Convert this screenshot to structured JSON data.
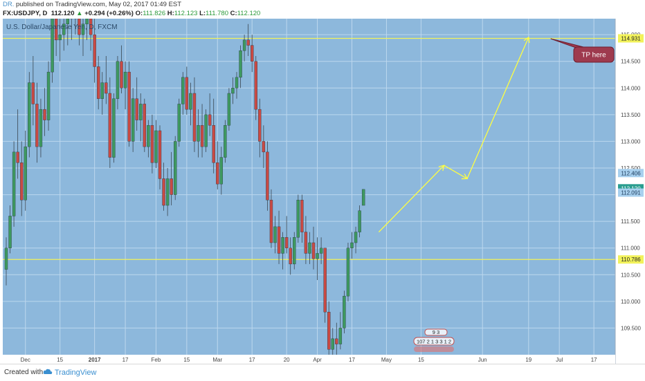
{
  "header": {
    "author": "DR.",
    "published": "published on TradingView.com, May 02, 2017 01:49 EST",
    "symbol": "FX:USDJPY, D",
    "last": "112.120",
    "change": "+0.294 (+0.26%)",
    "open_label": "O:",
    "open": "111.826",
    "high_label": "H:",
    "high": "112.123",
    "low_label": "L:",
    "low": "111.780",
    "close_label": "C:",
    "close": "112.120",
    "up_arrow": "▲"
  },
  "footer": {
    "created_with": "Created with",
    "brand": "TradingView"
  },
  "chart_data": {
    "type": "candlestick",
    "title": "U.S. Dollar/Japanese Yen, D, FXCM",
    "ylim": [
      109.0,
      115.3
    ],
    "y_ticks": [
      "109.500",
      "110.000",
      "110.500",
      "111.000",
      "111.500",
      "112.000",
      "112.500",
      "113.000",
      "113.500",
      "114.000",
      "114.500",
      "115.000"
    ],
    "x_ticks": [
      {
        "label": "Dec",
        "bar": 5
      },
      {
        "label": "15",
        "bar": 14
      },
      {
        "label": "2017",
        "bar": 23
      },
      {
        "label": "17",
        "bar": 31
      },
      {
        "label": "Feb",
        "bar": 39
      },
      {
        "label": "15",
        "bar": 47
      },
      {
        "label": "Mar",
        "bar": 55
      },
      {
        "label": "17",
        "bar": 64
      },
      {
        "label": "20",
        "bar": 73
      },
      {
        "label": "Apr",
        "bar": 81
      },
      {
        "label": "17",
        "bar": 90
      },
      {
        "label": "May",
        "bar": 99
      },
      {
        "label": "15",
        "bar": 108
      },
      {
        "label": "Jun",
        "bar": 124
      },
      {
        "label": "19",
        "bar": 136
      },
      {
        "label": "Jul",
        "bar": 144
      },
      {
        "label": "17",
        "bar": 153
      }
    ],
    "candles": [
      [
        110.6,
        111.2,
        110.3,
        111.0
      ],
      [
        111.0,
        111.8,
        110.9,
        111.6
      ],
      [
        111.6,
        113.0,
        111.4,
        112.8
      ],
      [
        112.8,
        113.6,
        112.3,
        112.6
      ],
      [
        112.6,
        113.0,
        111.6,
        111.9
      ],
      [
        111.9,
        113.2,
        111.7,
        112.9
      ],
      [
        112.9,
        114.3,
        112.7,
        114.1
      ],
      [
        114.1,
        114.6,
        113.3,
        113.7
      ],
      [
        113.7,
        114.1,
        112.6,
        112.9
      ],
      [
        112.9,
        113.8,
        112.7,
        113.6
      ],
      [
        113.6,
        114.0,
        113.1,
        113.4
      ],
      [
        113.4,
        114.5,
        113.2,
        114.3
      ],
      [
        114.3,
        115.5,
        114.1,
        115.3
      ],
      [
        115.3,
        115.6,
        114.6,
        114.9
      ],
      [
        114.9,
        115.3,
        114.5,
        115.0
      ],
      [
        115.0,
        115.4,
        114.7,
        115.2
      ],
      [
        115.2,
        115.5,
        114.8,
        115.3
      ],
      [
        115.3,
        115.6,
        114.9,
        115.4
      ],
      [
        115.4,
        115.6,
        115.0,
        115.3
      ],
      [
        115.3,
        115.5,
        114.8,
        115.0
      ],
      [
        115.0,
        115.4,
        114.6,
        115.2
      ],
      [
        115.2,
        115.5,
        114.9,
        115.3
      ],
      [
        115.3,
        115.4,
        114.7,
        115.0
      ],
      [
        115.0,
        115.3,
        114.1,
        114.4
      ],
      [
        114.4,
        114.6,
        113.6,
        113.8
      ],
      [
        113.8,
        114.3,
        113.5,
        114.1
      ],
      [
        114.1,
        114.6,
        113.7,
        113.9
      ],
      [
        113.9,
        114.2,
        112.5,
        112.7
      ],
      [
        112.7,
        113.9,
        112.6,
        113.8
      ],
      [
        113.8,
        114.6,
        113.6,
        114.5
      ],
      [
        114.5,
        114.8,
        113.9,
        114.0
      ],
      [
        114.0,
        114.5,
        113.6,
        114.3
      ],
      [
        114.3,
        114.5,
        112.9,
        113.0
      ],
      [
        113.0,
        114.0,
        112.8,
        113.8
      ],
      [
        113.8,
        114.2,
        113.2,
        113.4
      ],
      [
        113.4,
        113.9,
        113.0,
        113.7
      ],
      [
        113.7,
        113.8,
        112.8,
        112.9
      ],
      [
        112.9,
        113.4,
        112.7,
        113.3
      ],
      [
        113.3,
        113.5,
        112.4,
        112.6
      ],
      [
        112.6,
        113.4,
        112.5,
        113.2
      ],
      [
        113.2,
        113.3,
        112.1,
        112.3
      ],
      [
        112.3,
        112.6,
        111.7,
        111.8
      ],
      [
        111.8,
        112.5,
        111.6,
        112.3
      ],
      [
        112.3,
        112.8,
        111.8,
        112.0
      ],
      [
        112.0,
        113.1,
        111.9,
        113.0
      ],
      [
        113.0,
        113.8,
        112.9,
        113.7
      ],
      [
        113.7,
        114.3,
        113.5,
        114.2
      ],
      [
        114.2,
        114.4,
        113.5,
        113.6
      ],
      [
        113.6,
        114.1,
        113.3,
        113.9
      ],
      [
        113.9,
        114.2,
        112.8,
        113.0
      ],
      [
        113.0,
        113.6,
        112.7,
        113.3
      ],
      [
        113.3,
        113.7,
        112.7,
        112.9
      ],
      [
        112.9,
        113.6,
        112.8,
        113.5
      ],
      [
        113.5,
        113.9,
        113.1,
        113.3
      ],
      [
        113.3,
        113.8,
        112.4,
        112.6
      ],
      [
        112.6,
        113.0,
        112.1,
        112.2
      ],
      [
        112.2,
        112.9,
        112.0,
        112.7
      ],
      [
        112.7,
        113.4,
        112.6,
        113.3
      ],
      [
        113.3,
        114.0,
        113.2,
        113.9
      ],
      [
        113.9,
        114.2,
        113.7,
        114.0
      ],
      [
        114.0,
        114.3,
        113.8,
        114.2
      ],
      [
        114.2,
        114.8,
        114.0,
        114.7
      ],
      [
        114.7,
        115.0,
        114.5,
        114.9
      ],
      [
        114.9,
        115.2,
        114.6,
        114.8
      ],
      [
        114.8,
        115.0,
        114.3,
        114.5
      ],
      [
        114.5,
        114.6,
        113.4,
        113.6
      ],
      [
        113.6,
        113.8,
        112.7,
        113.0
      ],
      [
        113.0,
        113.3,
        112.5,
        112.8
      ],
      [
        112.8,
        113.0,
        111.7,
        111.9
      ],
      [
        111.9,
        112.1,
        111.0,
        111.1
      ],
      [
        111.1,
        111.6,
        110.9,
        111.4
      ],
      [
        111.4,
        111.7,
        110.7,
        110.9
      ],
      [
        110.9,
        111.3,
        110.6,
        111.2
      ],
      [
        111.2,
        111.6,
        110.9,
        111.0
      ],
      [
        111.0,
        111.2,
        110.5,
        110.7
      ],
      [
        110.7,
        111.3,
        110.6,
        111.2
      ],
      [
        111.2,
        112.0,
        111.1,
        111.9
      ],
      [
        111.9,
        112.0,
        111.1,
        111.3
      ],
      [
        111.3,
        111.6,
        110.7,
        110.9
      ],
      [
        110.9,
        111.3,
        110.7,
        111.1
      ],
      [
        111.1,
        111.4,
        110.6,
        110.8
      ],
      [
        110.8,
        111.2,
        110.4,
        110.9
      ],
      [
        110.9,
        111.2,
        110.7,
        111.0
      ],
      [
        111.0,
        111.0,
        109.6,
        109.8
      ],
      [
        109.8,
        110.0,
        108.9,
        109.1
      ],
      [
        109.1,
        109.5,
        108.8,
        109.3
      ],
      [
        109.3,
        109.6,
        109.0,
        109.2
      ],
      [
        109.2,
        109.8,
        109.1,
        109.5
      ],
      [
        109.5,
        110.2,
        109.4,
        110.1
      ],
      [
        110.1,
        111.1,
        110.0,
        111.0
      ],
      [
        111.0,
        111.3,
        110.8,
        111.1
      ],
      [
        111.1,
        111.4,
        110.9,
        111.3
      ],
      [
        111.3,
        111.8,
        111.2,
        111.7
      ],
      [
        111.8,
        112.1,
        111.8,
        112.1
      ]
    ],
    "projection": [
      {
        "bar": 97,
        "price": 111.3
      },
      {
        "bar": 114,
        "price": 112.55
      },
      {
        "bar": 120,
        "price": 112.3
      },
      {
        "bar": 136,
        "price": 114.95
      }
    ],
    "levels": [
      {
        "price": 114.931,
        "label": "114.931",
        "color": "#f2f25a"
      },
      {
        "price": 110.786,
        "label": "110.786",
        "color": "#f2f25a"
      }
    ],
    "price_markers": [
      {
        "price": 112.406,
        "label": "112.406",
        "bg": "#a8d0ee",
        "fg": "#1b3a5a"
      },
      {
        "price": 112.12,
        "label": "112.120",
        "bg": "#2a9d8f",
        "fg": "#ffffff"
      },
      {
        "price": 112.091,
        "label": "112.091",
        "bg": "#a8d0ee",
        "fg": "#1b3a5a"
      }
    ],
    "callout": {
      "text": "TP here"
    },
    "event_icons": {
      "row1": "9 3",
      "row2": "107 2 1 3 3 1 2"
    },
    "colors": {
      "background": "#8db8dc",
      "grid": "#bdd7ee",
      "up": "#3e9960",
      "down": "#c94a44",
      "projection": "#ffff40",
      "callout_bg": "#9e3a4e"
    }
  }
}
